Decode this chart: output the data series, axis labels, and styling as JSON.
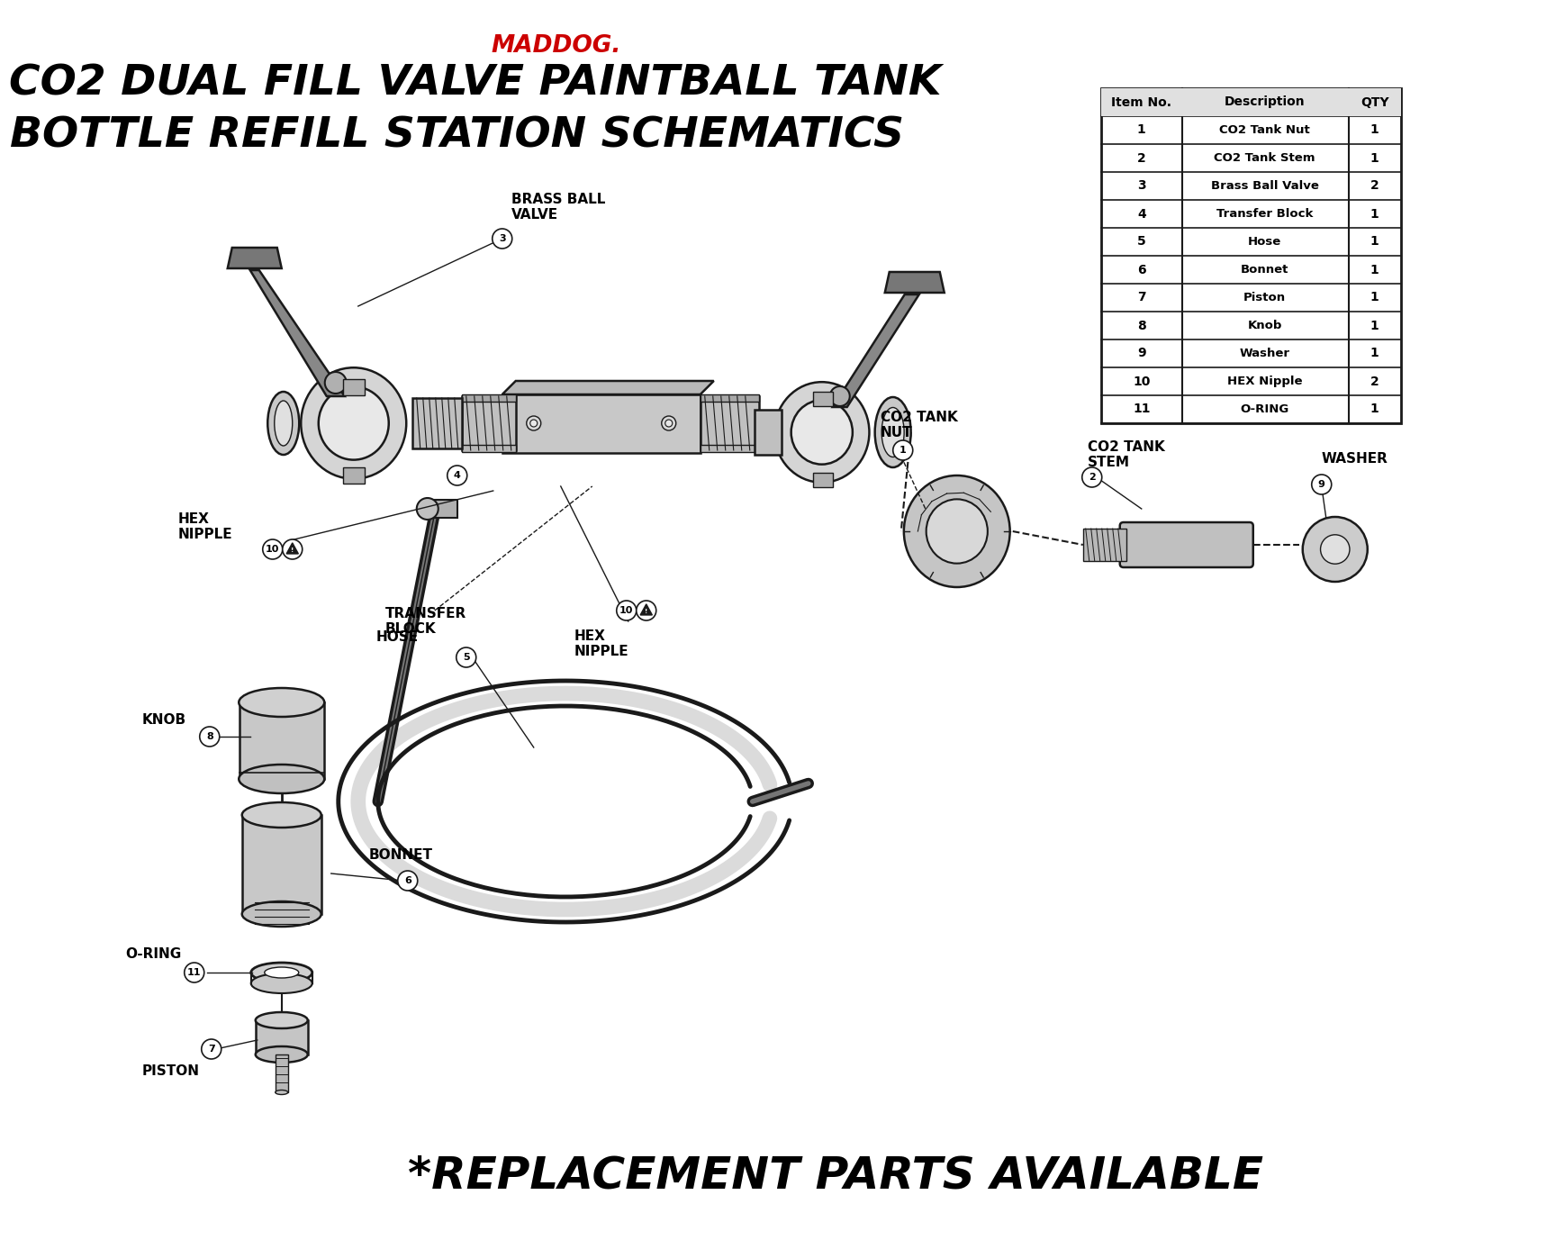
{
  "title_brand": "MADDOG.",
  "title_line1": "CO2 DUAL FILL VALVE PAINTBALL TANK",
  "title_line2": "BOTTLE REFILL STATION SCHEMATICS",
  "footer_text": "*REPLACEMENT PARTS AVAILABLE",
  "brand_color": "#cc0000",
  "title_color": "#000000",
  "bg_color": "#ffffff",
  "table_headers": [
    "Item No.",
    "Description",
    "QTY"
  ],
  "table_data": [
    [
      "1",
      "CO2 Tank Nut",
      "1"
    ],
    [
      "2",
      "CO2 Tank Stem",
      "1"
    ],
    [
      "3",
      "Brass Ball Valve",
      "2"
    ],
    [
      "4",
      "Transfer Block",
      "1"
    ],
    [
      "5",
      "Hose",
      "1"
    ],
    [
      "6",
      "Bonnet",
      "1"
    ],
    [
      "7",
      "Piston",
      "1"
    ],
    [
      "8",
      "Knob",
      "1"
    ],
    [
      "9",
      "Washer",
      "1"
    ],
    [
      "10",
      "HEX Nipple",
      "2"
    ],
    [
      "11",
      "O-RING",
      "1"
    ]
  ]
}
